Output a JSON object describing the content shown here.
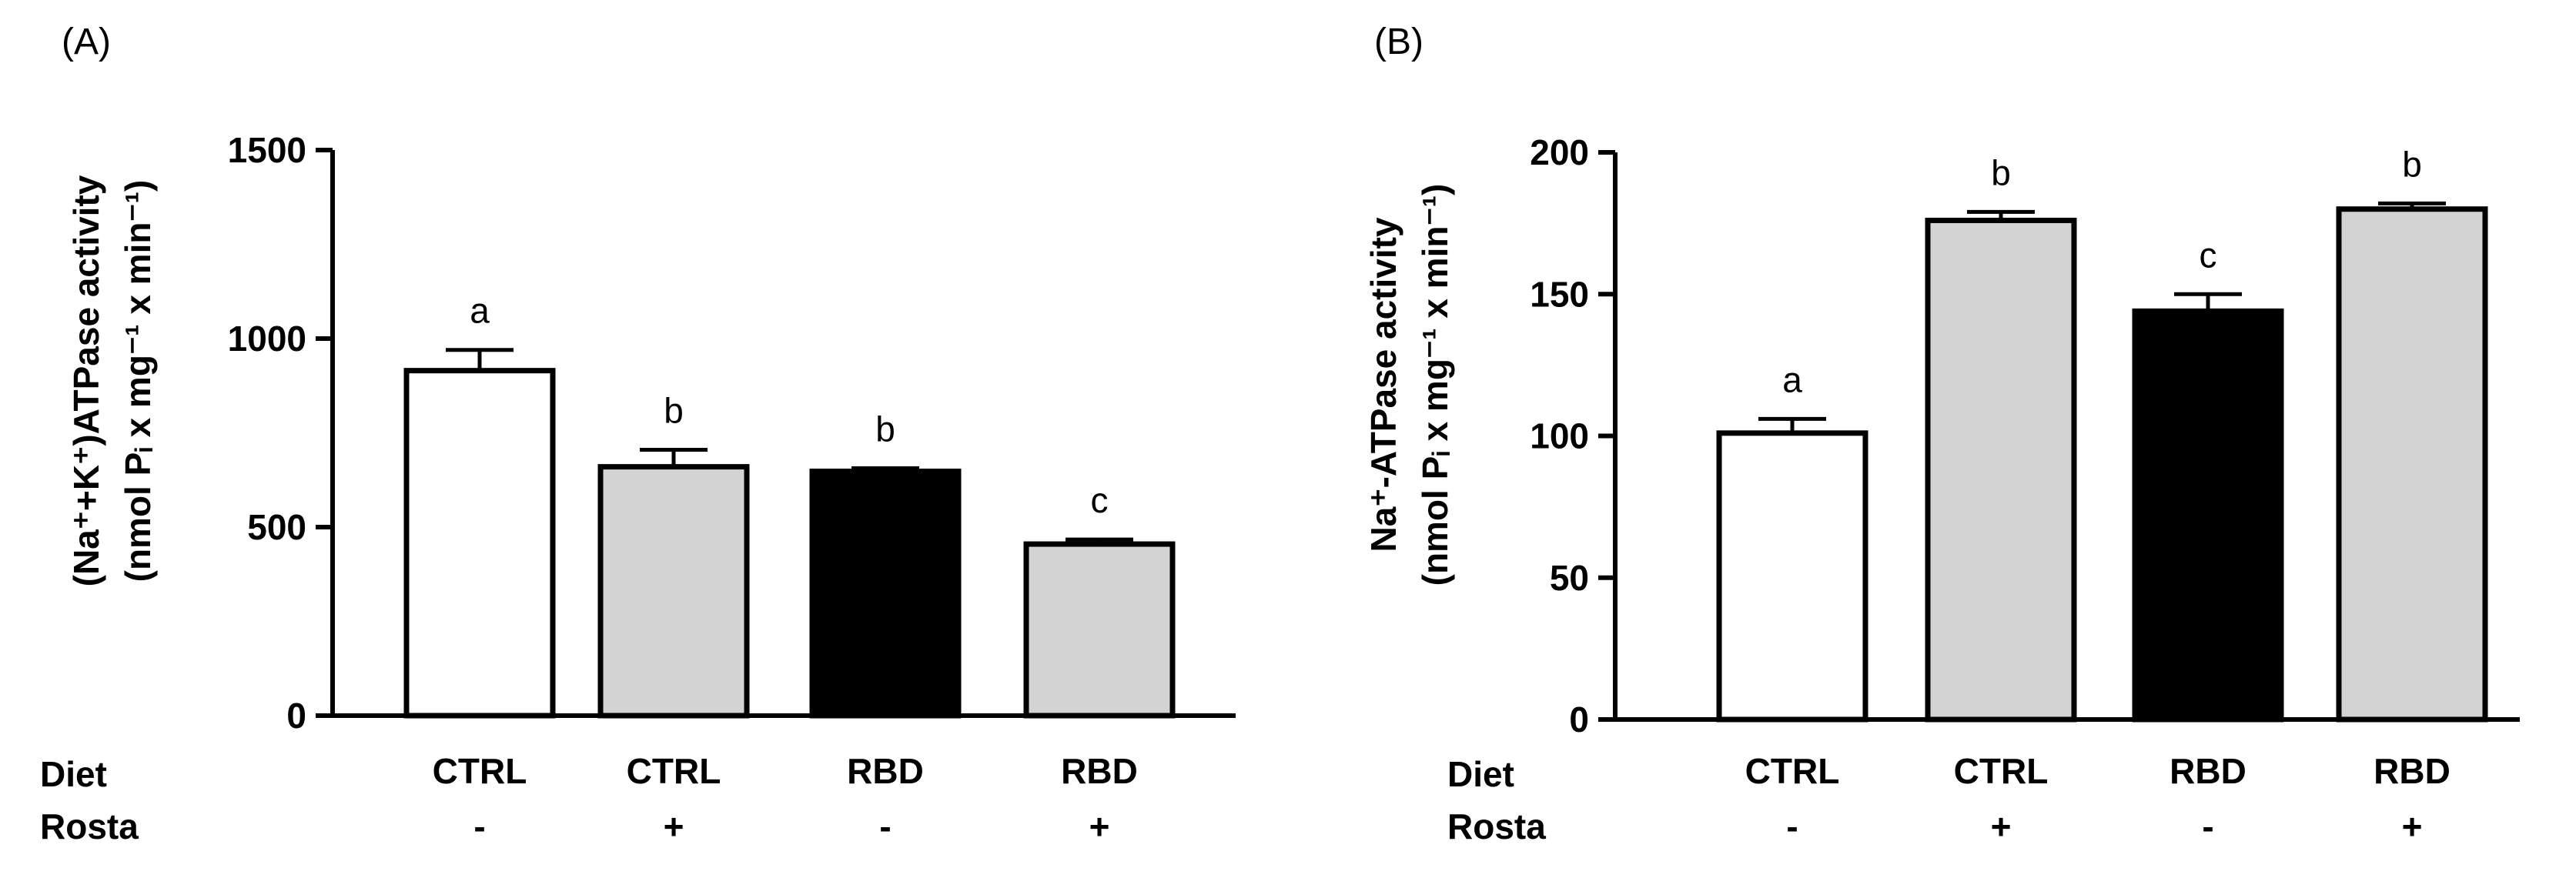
{
  "chart_data": [
    {
      "panel_label": "(A)",
      "type": "bar",
      "ylabel_line1": "(Na⁺+K⁺)ATPase activity",
      "ylabel_line2": "(nmol Pᵢ x mg⁻¹ x min⁻¹)",
      "ylim": [
        0,
        1500
      ],
      "yticks": [
        0,
        500,
        1000,
        1500
      ],
      "ytick_labels": [
        "0",
        "500",
        "1000",
        "1500"
      ],
      "row_labels": [
        "Diet",
        "Rosta"
      ],
      "categories": [
        {
          "diet": "CTRL",
          "rosta": "-",
          "value": 915,
          "error": 55,
          "sig": "a",
          "fill": "#ffffff"
        },
        {
          "diet": "CTRL",
          "rosta": "+",
          "value": 660,
          "error": 45,
          "sig": "b",
          "fill": "#d3d3d3"
        },
        {
          "diet": "RBD",
          "rosta": "-",
          "value": 648,
          "error": 8,
          "sig": "b",
          "fill": "#000000"
        },
        {
          "diet": "RBD",
          "rosta": "+",
          "value": 455,
          "error": 12,
          "sig": "c",
          "fill": "#d3d3d3"
        }
      ]
    },
    {
      "panel_label": "(B)",
      "type": "bar",
      "ylabel_line1": "Na⁺-ATPase activity",
      "ylabel_line2": "(nmol Pᵢ x mg⁻¹ x min⁻¹)",
      "ylim": [
        0,
        200
      ],
      "yticks": [
        0,
        50,
        100,
        150,
        200
      ],
      "ytick_labels": [
        "0",
        "50",
        "100",
        "150",
        "200"
      ],
      "row_labels": [
        "Diet",
        "Rosta"
      ],
      "categories": [
        {
          "diet": "CTRL",
          "rosta": "-",
          "value": 101,
          "error": 5,
          "sig": "a",
          "fill": "#ffffff"
        },
        {
          "diet": "CTRL",
          "rosta": "+",
          "value": 176,
          "error": 3,
          "sig": "b",
          "fill": "#d3d3d3"
        },
        {
          "diet": "RBD",
          "rosta": "-",
          "value": 144,
          "error": 6,
          "sig": "c",
          "fill": "#000000"
        },
        {
          "diet": "RBD",
          "rosta": "+",
          "value": 180,
          "error": 2,
          "sig": "b",
          "fill": "#d3d3d3"
        }
      ]
    }
  ]
}
